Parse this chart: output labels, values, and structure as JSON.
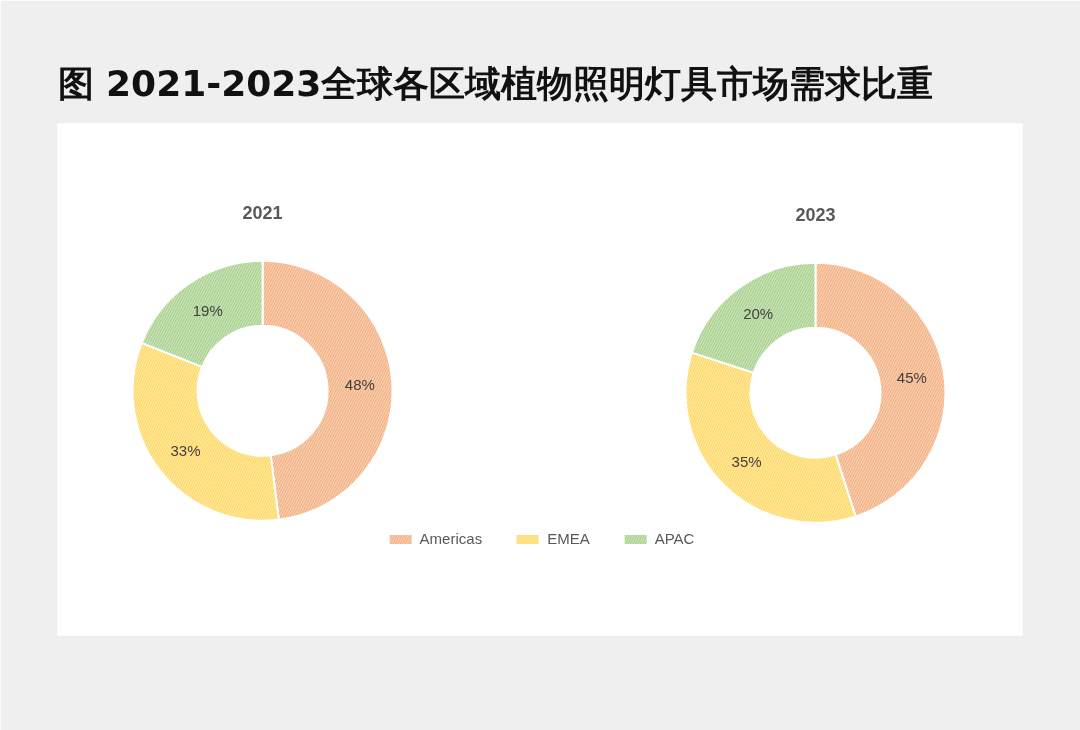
{
  "chart_data": [
    {
      "type": "donut",
      "title": "图 2021-2023全球各区域植物照明灯具市场需求比重",
      "subtitle": "2021",
      "categories": [
        "Americas",
        "EMEA",
        "APAC"
      ],
      "values": [
        48,
        33,
        19
      ],
      "colors": [
        "#f4b183",
        "#ffd966",
        "#a9d18e"
      ],
      "value_labels": [
        "48%",
        "33%",
        "19%"
      ],
      "legend": "bottom"
    },
    {
      "type": "donut",
      "subtitle": "2023",
      "values": [
        45,
        35,
        20
      ],
      "colors": [
        "#f4b183",
        "#ffd966",
        "#a9d18e"
      ],
      "value_labels": [
        "45%",
        "35%",
        "20%"
      ]
    }
  ]
}
